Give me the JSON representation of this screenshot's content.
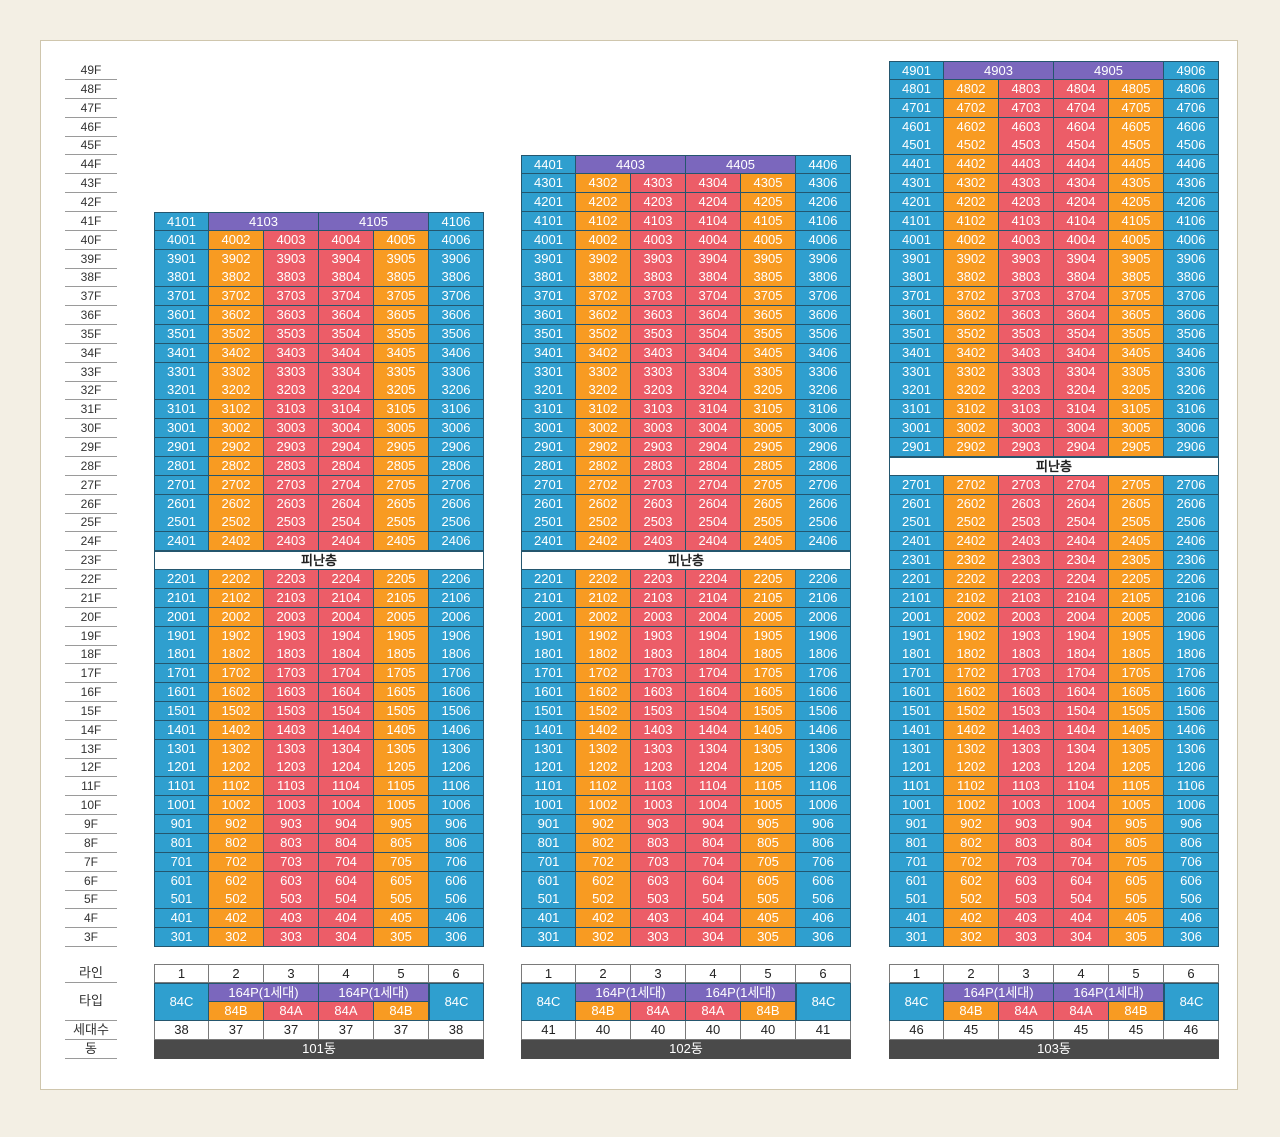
{
  "colors": {
    "blue": "#2f9fcf",
    "orange": "#f89b22",
    "red": "#ec5d68",
    "purple": "#7b67bd",
    "dark": "#4a4a4a",
    "border": "#24566e"
  },
  "floor_labels": [
    "49F",
    "48F",
    "47F",
    "46F",
    "45F",
    "44F",
    "43F",
    "42F",
    "41F",
    "40F",
    "39F",
    "38F",
    "37F",
    "36F",
    "35F",
    "34F",
    "33F",
    "32F",
    "31F",
    "30F",
    "29F",
    "28F",
    "27F",
    "26F",
    "25F",
    "24F",
    "23F",
    "22F",
    "21F",
    "20F",
    "19F",
    "18F",
    "17F",
    "16F",
    "15F",
    "14F",
    "13F",
    "12F",
    "11F",
    "10F",
    "9F",
    "8F",
    "7F",
    "6F",
    "5F",
    "4F",
    "3F"
  ],
  "row_labels": {
    "line": "라인",
    "type": "타입",
    "households": "세대수",
    "building": "동"
  },
  "refuge_label": "피난층",
  "line_numbers": [
    "1",
    "2",
    "3",
    "4",
    "5",
    "6"
  ],
  "buildings": [
    {
      "name": "101동",
      "top_floor": 41,
      "refuge_floors": [
        23
      ],
      "penthouse": [
        "4101",
        "4103",
        "4105",
        "4106"
      ],
      "types": {
        "end": "84C",
        "penthouse_label": "164P(1세대)",
        "mid": [
          "84B",
          "84A",
          "84A",
          "84B"
        ]
      },
      "households": [
        "38",
        "37",
        "37",
        "37",
        "37",
        "38"
      ]
    },
    {
      "name": "102동",
      "top_floor": 44,
      "refuge_floors": [
        23
      ],
      "penthouse": [
        "4401",
        "4403",
        "4405",
        "4406"
      ],
      "types": {
        "end": "84C",
        "penthouse_label": "164P(1세대)",
        "mid": [
          "84B",
          "84A",
          "84A",
          "84B"
        ]
      },
      "households": [
        "41",
        "40",
        "40",
        "40",
        "40",
        "41"
      ]
    },
    {
      "name": "103동",
      "top_floor": 49,
      "refuge_floors": [
        28
      ],
      "penthouse": [
        "4901",
        "4903",
        "4905",
        "4906"
      ],
      "types": {
        "end": "84C",
        "penthouse_label": "164P(1세대)",
        "mid": [
          "84B",
          "84A",
          "84A",
          "84B"
        ]
      },
      "households": [
        "46",
        "45",
        "45",
        "45",
        "45",
        "46"
      ]
    }
  ]
}
